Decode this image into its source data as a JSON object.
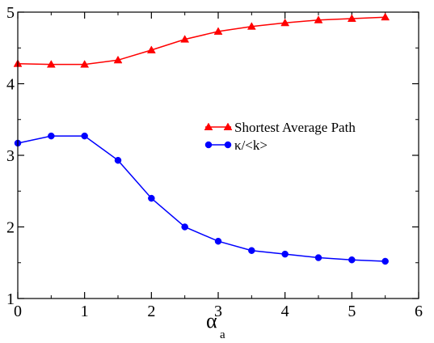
{
  "chart_data": {
    "type": "line",
    "title": "",
    "xlabel": "α",
    "xlabel_subscript": "a",
    "ylabel": "",
    "xlim": [
      0,
      6
    ],
    "ylim": [
      1,
      5
    ],
    "xticks": [
      0,
      1,
      2,
      3,
      4,
      5,
      6
    ],
    "yticks": [
      1,
      2,
      3,
      4,
      5
    ],
    "grid": false,
    "legend_position": "center-right",
    "series": [
      {
        "name": "Shortest Average Path",
        "color": "#ff0000",
        "marker": "triangle",
        "x": [
          0,
          0.5,
          1,
          1.5,
          2,
          2.5,
          3,
          3.5,
          4,
          4.5,
          5,
          5.5
        ],
        "values": [
          4.28,
          4.27,
          4.27,
          4.33,
          4.47,
          4.62,
          4.73,
          4.8,
          4.85,
          4.89,
          4.91,
          4.93
        ]
      },
      {
        "name": "κ/<k>",
        "color": "#0000ff",
        "marker": "circle",
        "x": [
          0,
          0.5,
          1,
          1.5,
          2,
          2.5,
          3,
          3.5,
          4,
          4.5,
          5,
          5.5
        ],
        "values": [
          3.17,
          3.27,
          3.27,
          2.93,
          2.4,
          2.0,
          1.8,
          1.67,
          1.62,
          1.57,
          1.54,
          1.52
        ]
      }
    ]
  }
}
